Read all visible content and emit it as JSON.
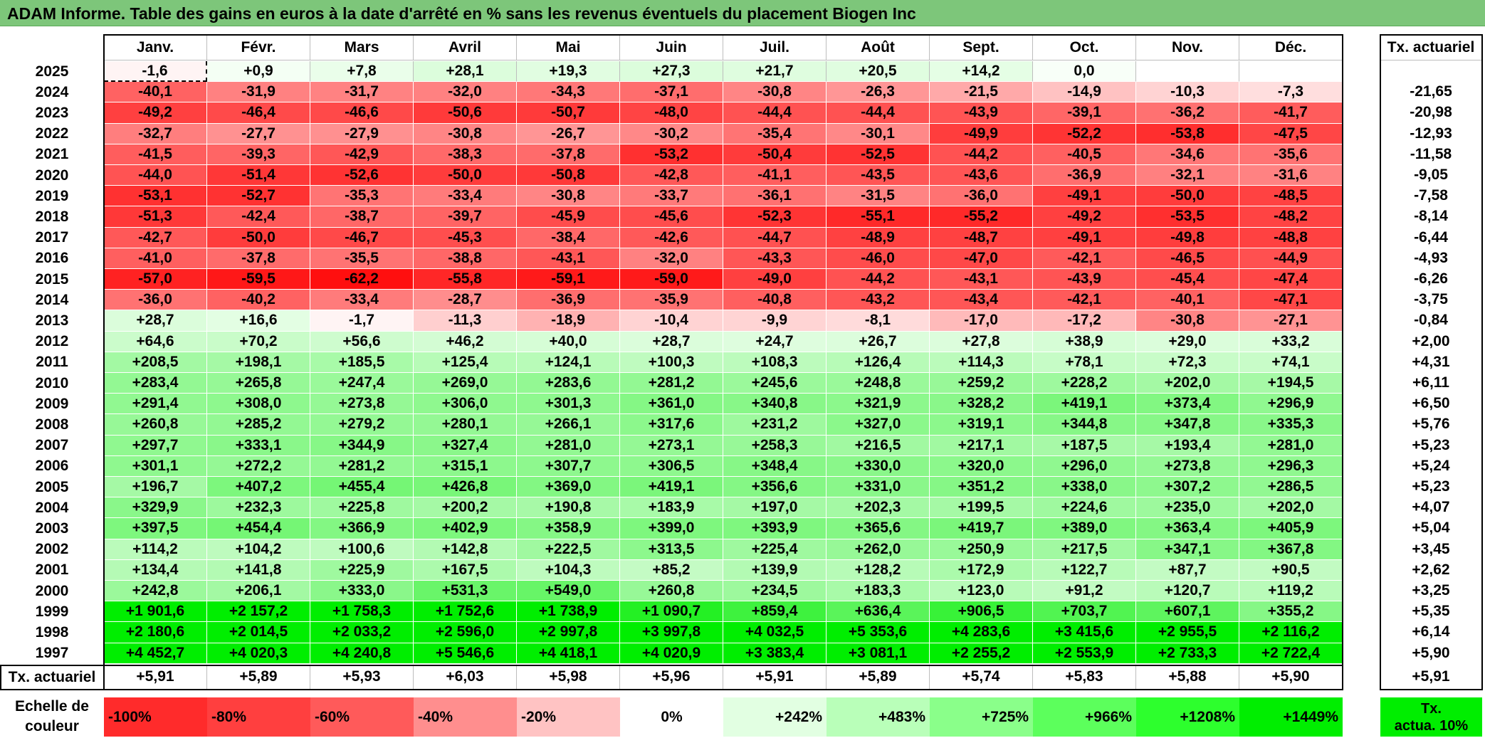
{
  "title": "ADAM Informe. Table des gains en euros à la date d'arrêté en % sans les revenus éventuels du placement Biogen Inc",
  "chart_data": {
    "type": "heatmap",
    "title": "ADAM Informe. Table des gains en euros à la date d'arrêté en % sans les revenus éventuels du placement Biogen Inc",
    "columns": [
      "Janv.",
      "Févr.",
      "Mars",
      "Avril",
      "Mai",
      "Juin",
      "Juil.",
      "Août",
      "Sept.",
      "Oct.",
      "Nov.",
      "Déc."
    ],
    "rate_header": "Tx. actuariel",
    "rows": [
      {
        "year": "2025",
        "values": [
          "-1,6",
          "+0,9",
          "+7,8",
          "+28,1",
          "+19,3",
          "+27,3",
          "+21,7",
          "+20,5",
          "+14,2",
          "0,0",
          "",
          ""
        ],
        "rate": ""
      },
      {
        "year": "2024",
        "values": [
          "-40,1",
          "-31,9",
          "-31,7",
          "-32,0",
          "-34,3",
          "-37,1",
          "-30,8",
          "-26,3",
          "-21,5",
          "-14,9",
          "-10,3",
          "-7,3"
        ],
        "rate": "-21,65"
      },
      {
        "year": "2023",
        "values": [
          "-49,2",
          "-46,4",
          "-46,6",
          "-50,6",
          "-50,7",
          "-48,0",
          "-44,4",
          "-44,4",
          "-43,9",
          "-39,1",
          "-36,2",
          "-41,7"
        ],
        "rate": "-20,98"
      },
      {
        "year": "2022",
        "values": [
          "-32,7",
          "-27,7",
          "-27,9",
          "-30,8",
          "-26,7",
          "-30,2",
          "-35,4",
          "-30,1",
          "-49,9",
          "-52,2",
          "-53,8",
          "-47,5"
        ],
        "rate": "-12,93"
      },
      {
        "year": "2021",
        "values": [
          "-41,5",
          "-39,3",
          "-42,9",
          "-38,3",
          "-37,8",
          "-53,2",
          "-50,4",
          "-52,5",
          "-44,2",
          "-40,5",
          "-34,6",
          "-35,6"
        ],
        "rate": "-11,58"
      },
      {
        "year": "2020",
        "values": [
          "-44,0",
          "-51,4",
          "-52,6",
          "-50,0",
          "-50,8",
          "-42,8",
          "-41,1",
          "-43,5",
          "-43,6",
          "-36,9",
          "-32,1",
          "-31,6"
        ],
        "rate": "-9,05"
      },
      {
        "year": "2019",
        "values": [
          "-53,1",
          "-52,7",
          "-35,3",
          "-33,4",
          "-30,8",
          "-33,7",
          "-36,1",
          "-31,5",
          "-36,0",
          "-49,1",
          "-50,0",
          "-48,5"
        ],
        "rate": "-7,58"
      },
      {
        "year": "2018",
        "values": [
          "-51,3",
          "-42,4",
          "-38,7",
          "-39,7",
          "-45,9",
          "-45,6",
          "-52,3",
          "-55,1",
          "-55,2",
          "-49,2",
          "-53,5",
          "-48,2"
        ],
        "rate": "-8,14"
      },
      {
        "year": "2017",
        "values": [
          "-42,7",
          "-50,0",
          "-46,7",
          "-45,3",
          "-38,4",
          "-42,6",
          "-44,7",
          "-48,9",
          "-48,7",
          "-49,1",
          "-49,8",
          "-48,8"
        ],
        "rate": "-6,44"
      },
      {
        "year": "2016",
        "values": [
          "-41,0",
          "-37,8",
          "-35,5",
          "-38,8",
          "-43,1",
          "-32,0",
          "-43,3",
          "-46,0",
          "-47,0",
          "-42,1",
          "-46,5",
          "-44,9"
        ],
        "rate": "-4,93"
      },
      {
        "year": "2015",
        "values": [
          "-57,0",
          "-59,5",
          "-62,2",
          "-55,8",
          "-59,1",
          "-59,0",
          "-49,0",
          "-44,2",
          "-43,1",
          "-43,9",
          "-45,4",
          "-47,4"
        ],
        "rate": "-6,26"
      },
      {
        "year": "2014",
        "values": [
          "-36,0",
          "-40,2",
          "-33,4",
          "-28,7",
          "-36,9",
          "-35,9",
          "-40,8",
          "-43,2",
          "-43,4",
          "-42,1",
          "-40,1",
          "-47,1"
        ],
        "rate": "-3,75"
      },
      {
        "year": "2013",
        "values": [
          "+28,7",
          "+16,6",
          "-1,7",
          "-11,3",
          "-18,9",
          "-10,4",
          "-9,9",
          "-8,1",
          "-17,0",
          "-17,2",
          "-30,8",
          "-27,1"
        ],
        "rate": "-0,84"
      },
      {
        "year": "2012",
        "values": [
          "+64,6",
          "+70,2",
          "+56,6",
          "+46,2",
          "+40,0",
          "+28,7",
          "+24,7",
          "+26,7",
          "+27,8",
          "+38,9",
          "+29,0",
          "+33,2"
        ],
        "rate": "+2,00"
      },
      {
        "year": "2011",
        "values": [
          "+208,5",
          "+198,1",
          "+185,5",
          "+125,4",
          "+124,1",
          "+100,3",
          "+108,3",
          "+126,4",
          "+114,3",
          "+78,1",
          "+72,3",
          "+74,1"
        ],
        "rate": "+4,31"
      },
      {
        "year": "2010",
        "values": [
          "+283,4",
          "+265,8",
          "+247,4",
          "+269,0",
          "+283,6",
          "+281,2",
          "+245,6",
          "+248,8",
          "+259,2",
          "+228,2",
          "+202,0",
          "+194,5"
        ],
        "rate": "+6,11"
      },
      {
        "year": "2009",
        "values": [
          "+291,4",
          "+308,0",
          "+273,8",
          "+306,0",
          "+301,3",
          "+361,0",
          "+340,8",
          "+321,9",
          "+328,2",
          "+419,1",
          "+373,4",
          "+296,9"
        ],
        "rate": "+6,50"
      },
      {
        "year": "2008",
        "values": [
          "+260,8",
          "+285,2",
          "+279,2",
          "+280,1",
          "+266,1",
          "+317,6",
          "+231,2",
          "+327,0",
          "+319,1",
          "+344,8",
          "+347,8",
          "+335,3"
        ],
        "rate": "+5,76"
      },
      {
        "year": "2007",
        "values": [
          "+297,7",
          "+333,1",
          "+344,9",
          "+327,4",
          "+281,0",
          "+273,1",
          "+258,3",
          "+216,5",
          "+217,1",
          "+187,5",
          "+193,4",
          "+281,0"
        ],
        "rate": "+5,23"
      },
      {
        "year": "2006",
        "values": [
          "+301,1",
          "+272,2",
          "+281,2",
          "+315,1",
          "+307,7",
          "+306,5",
          "+348,4",
          "+330,0",
          "+320,0",
          "+296,0",
          "+273,8",
          "+296,3"
        ],
        "rate": "+5,24"
      },
      {
        "year": "2005",
        "values": [
          "+196,7",
          "+407,2",
          "+455,4",
          "+426,8",
          "+369,0",
          "+419,1",
          "+356,6",
          "+331,0",
          "+351,2",
          "+338,0",
          "+307,2",
          "+286,5"
        ],
        "rate": "+5,23"
      },
      {
        "year": "2004",
        "values": [
          "+329,9",
          "+232,3",
          "+225,8",
          "+200,2",
          "+190,8",
          "+183,9",
          "+197,0",
          "+202,3",
          "+199,5",
          "+224,6",
          "+235,0",
          "+202,0"
        ],
        "rate": "+4,07"
      },
      {
        "year": "2003",
        "values": [
          "+397,5",
          "+454,4",
          "+366,9",
          "+402,9",
          "+358,9",
          "+399,0",
          "+393,9",
          "+365,6",
          "+419,7",
          "+389,0",
          "+363,4",
          "+405,9"
        ],
        "rate": "+5,04"
      },
      {
        "year": "2002",
        "values": [
          "+114,2",
          "+104,2",
          "+100,6",
          "+142,8",
          "+222,5",
          "+313,5",
          "+225,4",
          "+262,0",
          "+250,9",
          "+217,5",
          "+347,1",
          "+367,8"
        ],
        "rate": "+3,45"
      },
      {
        "year": "2001",
        "values": [
          "+134,4",
          "+141,8",
          "+225,9",
          "+167,5",
          "+104,3",
          "+85,2",
          "+139,9",
          "+128,2",
          "+172,9",
          "+122,7",
          "+87,7",
          "+90,5"
        ],
        "rate": "+2,62"
      },
      {
        "year": "2000",
        "values": [
          "+242,8",
          "+206,1",
          "+333,0",
          "+531,3",
          "+549,0",
          "+260,8",
          "+234,5",
          "+183,3",
          "+123,0",
          "+91,2",
          "+120,7",
          "+119,2"
        ],
        "rate": "+3,25"
      },
      {
        "year": "1999",
        "values": [
          "+1 901,6",
          "+2 157,2",
          "+1 758,3",
          "+1 752,6",
          "+1 738,9",
          "+1 090,7",
          "+859,4",
          "+636,4",
          "+906,5",
          "+703,7",
          "+607,1",
          "+355,2"
        ],
        "rate": "+5,35"
      },
      {
        "year": "1998",
        "values": [
          "+2 180,6",
          "+2 014,5",
          "+2 033,2",
          "+2 596,0",
          "+2 997,8",
          "+3 997,8",
          "+4 032,5",
          "+5 353,6",
          "+4 283,6",
          "+3 415,6",
          "+2 955,5",
          "+2 116,2"
        ],
        "rate": "+6,14"
      },
      {
        "year": "1997",
        "values": [
          "+4 452,7",
          "+4 020,3",
          "+4 240,8",
          "+5 546,6",
          "+4 418,1",
          "+4 020,9",
          "+3 383,4",
          "+3 081,1",
          "+2 255,2",
          "+2 553,9",
          "+2 733,3",
          "+2 722,4"
        ],
        "rate": "+5,90"
      }
    ],
    "summary_row": {
      "label": "Tx. actuariel",
      "values": [
        "+5,91",
        "+5,89",
        "+5,93",
        "+6,03",
        "+5,98",
        "+5,96",
        "+5,91",
        "+5,89",
        "+5,74",
        "+5,83",
        "+5,88",
        "+5,90"
      ],
      "rate": "+5,91"
    },
    "legend": {
      "label_line1": "Echelle de",
      "label_line2": "couleur",
      "stops": [
        "-100%",
        "-80%",
        "-60%",
        "-40%",
        "-20%",
        "0%",
        "+242%",
        "+483%",
        "+725%",
        "+966%",
        "+1208%",
        "+1449%"
      ],
      "stop_colors": [
        "#ff2b2b",
        "#ff3f3f",
        "#ff5a5a",
        "#ff8e8e",
        "#ffc3c3",
        "#ffffff",
        "#e2ffe2",
        "#b9ffb9",
        "#8aff8a",
        "#5cff5c",
        "#2dff2d",
        "#00ee00"
      ],
      "rate_label_line1": "Tx.",
      "rate_label_line2": "actua. 10%",
      "rate_color": "#00ee00"
    }
  }
}
